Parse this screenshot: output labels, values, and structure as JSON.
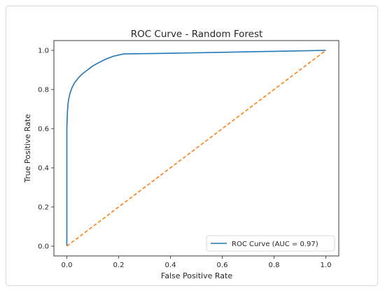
{
  "chart_data": {
    "type": "line",
    "title": "ROC Curve - Random Forest",
    "xlabel": "False Positive Rate",
    "ylabel": "True Positive Rate",
    "xlim": [
      -0.05,
      1.05
    ],
    "ylim": [
      -0.05,
      1.05
    ],
    "xticks": [
      "0.0",
      "0.2",
      "0.4",
      "0.6",
      "0.8",
      "1.0"
    ],
    "yticks": [
      "0.0",
      "0.2",
      "0.4",
      "0.6",
      "0.8",
      "1.0"
    ],
    "grid": false,
    "legend": {
      "placement": "lower-right",
      "entries": [
        "ROC Curve (AUC = 0.97)"
      ]
    },
    "series": [
      {
        "name": "ROC Curve (AUC = 0.97)",
        "color": "#1f77b4",
        "style": "solid",
        "x": [
          0.0,
          0.0,
          0.002,
          0.004,
          0.007,
          0.012,
          0.02,
          0.03,
          0.045,
          0.06,
          0.08,
          0.1,
          0.12,
          0.15,
          0.18,
          0.22,
          0.4,
          0.6,
          0.8,
          1.0
        ],
        "y": [
          0.0,
          0.6,
          0.68,
          0.72,
          0.75,
          0.78,
          0.81,
          0.835,
          0.86,
          0.88,
          0.9,
          0.92,
          0.935,
          0.955,
          0.97,
          0.982,
          0.985,
          0.99,
          0.995,
          1.0
        ]
      },
      {
        "name": "",
        "color": "#ff7f0e",
        "style": "dashed",
        "x": [
          0.0,
          1.0
        ],
        "y": [
          0.0,
          1.0
        ]
      }
    ]
  }
}
